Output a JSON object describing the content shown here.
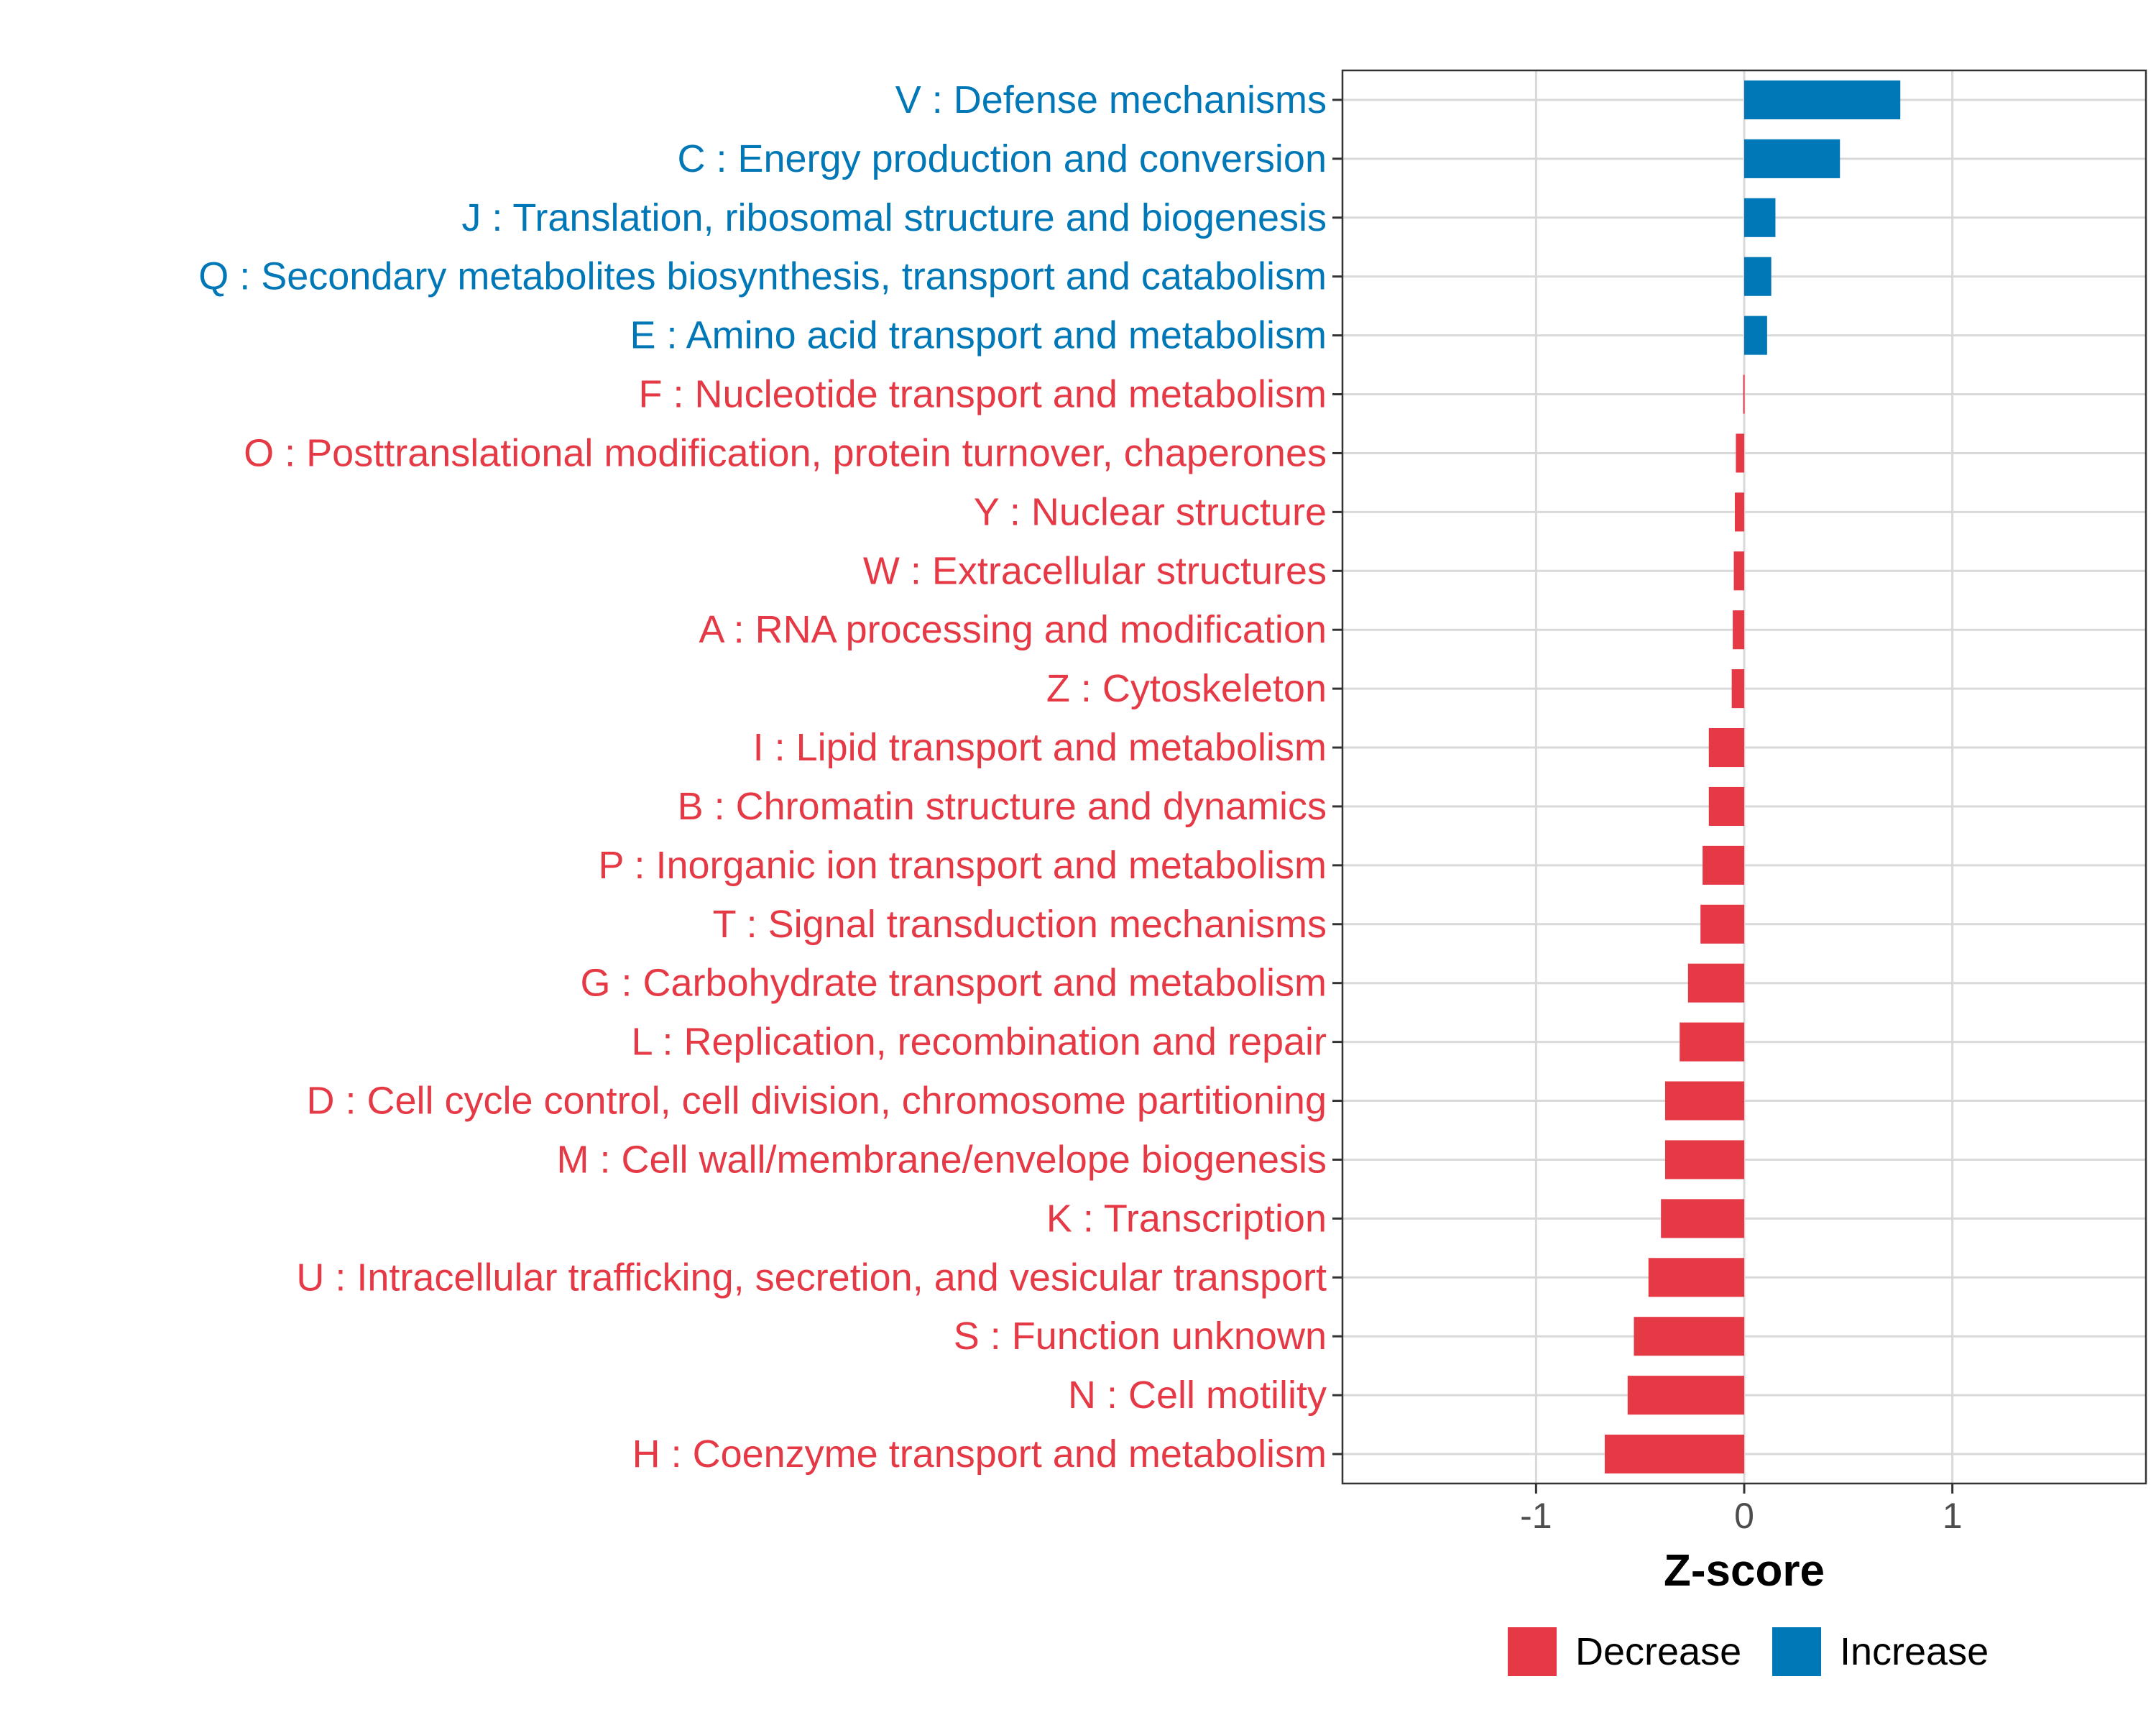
{
  "chart_data": {
    "type": "bar",
    "orientation": "horizontal",
    "title": "",
    "xlabel": "Z-score",
    "ylabel": "",
    "xlim": [
      -1.93,
      1.93
    ],
    "xticks": [
      -1,
      0,
      1
    ],
    "xtick_labels": [
      "-1",
      "0",
      "1"
    ],
    "grid": true,
    "legend_position": "bottom",
    "colors": {
      "Decrease": "#e63946",
      "Increase": "#0077b6"
    },
    "legend": [
      {
        "label": "Decrease",
        "color": "#e63946"
      },
      {
        "label": "Increase",
        "color": "#0077b6"
      }
    ],
    "categories": [
      "V : Defense mechanisms",
      "C : Energy production and conversion",
      "J : Translation, ribosomal structure and biogenesis",
      "Q : Secondary metabolites biosynthesis, transport and catabolism",
      "E : Amino acid transport and metabolism",
      "F : Nucleotide transport and metabolism",
      "O : Posttranslational modification, protein turnover, chaperones",
      "Y : Nuclear structure",
      "W : Extracellular structures",
      "A : RNA processing and modification",
      "Z : Cytoskeleton",
      "I : Lipid transport and metabolism",
      "B : Chromatin structure and dynamics",
      "P : Inorganic ion transport and metabolism",
      "T : Signal transduction mechanisms",
      "G : Carbohydrate transport and metabolism",
      "L : Replication, recombination and repair",
      "D : Cell cycle control, cell division, chromosome partitioning",
      "M : Cell wall/membrane/envelope biogenesis",
      "K : Transcription",
      "U : Intracellular trafficking, secretion, and vesicular transport",
      "S : Function unknown",
      "N : Cell motility",
      "H : Coenzyme transport and metabolism"
    ],
    "values": [
      0.75,
      0.46,
      0.15,
      0.13,
      0.11,
      -0.005,
      -0.04,
      -0.045,
      -0.05,
      -0.055,
      -0.06,
      -0.17,
      -0.17,
      -0.2,
      -0.21,
      -0.27,
      -0.31,
      -0.38,
      -0.38,
      -0.4,
      -0.46,
      -0.53,
      -0.56,
      -0.67
    ],
    "groups": [
      "Increase",
      "Increase",
      "Increase",
      "Increase",
      "Increase",
      "Decrease",
      "Decrease",
      "Decrease",
      "Decrease",
      "Decrease",
      "Decrease",
      "Decrease",
      "Decrease",
      "Decrease",
      "Decrease",
      "Decrease",
      "Decrease",
      "Decrease",
      "Decrease",
      "Decrease",
      "Decrease",
      "Decrease",
      "Decrease",
      "Decrease"
    ]
  }
}
